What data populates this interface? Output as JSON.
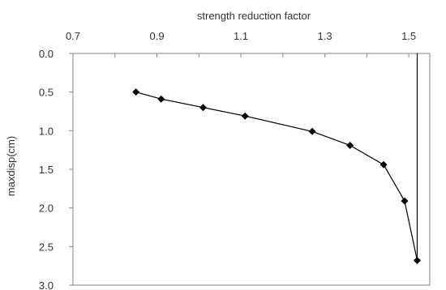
{
  "chart_data": {
    "type": "line",
    "xlabel": "strength reduction factor",
    "ylabel": "maxdisp(cm)",
    "x_axis_position": "top",
    "y_axis_inverted": true,
    "xlim": [
      0.7,
      1.55
    ],
    "ylim": [
      0.0,
      3.0
    ],
    "x_ticks": [
      0.7,
      0.9,
      1.1,
      1.3,
      1.5
    ],
    "x_tick_labels": [
      "0.7",
      "0.9",
      "1.1",
      "1.3",
      "1.5"
    ],
    "x_minor_ticks": [
      0.8,
      1.0,
      1.2,
      1.4
    ],
    "y_ticks": [
      0.0,
      0.5,
      1.0,
      1.5,
      2.0,
      2.5,
      3.0
    ],
    "y_tick_labels": [
      "0.0",
      "0.5",
      "1.0",
      "1.5",
      "2.0",
      "2.5",
      "3.0"
    ],
    "grid": false,
    "legend": false,
    "series": [
      {
        "marker": "diamond",
        "color": "#000000",
        "x": [
          0.85,
          0.91,
          1.01,
          1.11,
          1.27,
          1.36,
          1.44,
          1.49,
          1.52
        ],
        "y": [
          0.5,
          0.59,
          0.7,
          0.81,
          1.01,
          1.19,
          1.44,
          1.91,
          2.68
        ],
        "closure_segment": {
          "x": [
            1.52,
            1.52
          ],
          "y": [
            0.0,
            2.68
          ]
        }
      }
    ]
  }
}
